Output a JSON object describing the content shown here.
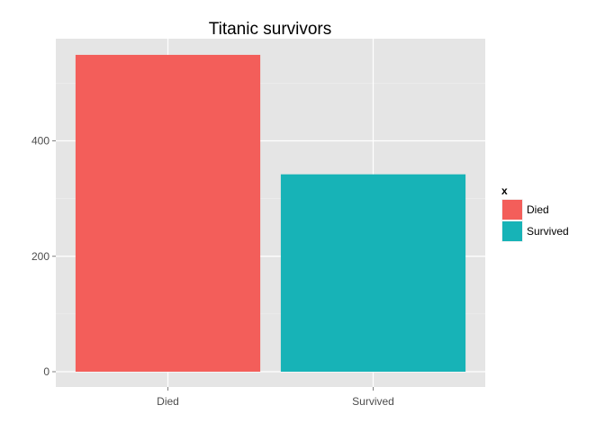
{
  "chart_data": {
    "type": "bar",
    "title": "Titanic survivors",
    "xlabel": "",
    "ylabel": "",
    "categories": [
      "Died",
      "Survived"
    ],
    "values": [
      549,
      342
    ],
    "colors": [
      "#F35E5A",
      "#17B3B7"
    ],
    "ylim": [
      0,
      550
    ],
    "yticks": [
      0,
      200,
      400
    ],
    "ytick_labels": [
      "0",
      "200",
      "400"
    ],
    "grid": true,
    "panel_background": "#E5E5E5",
    "legend": {
      "title": "x",
      "entries": [
        "Died",
        "Survived"
      ],
      "placement": "right"
    }
  }
}
